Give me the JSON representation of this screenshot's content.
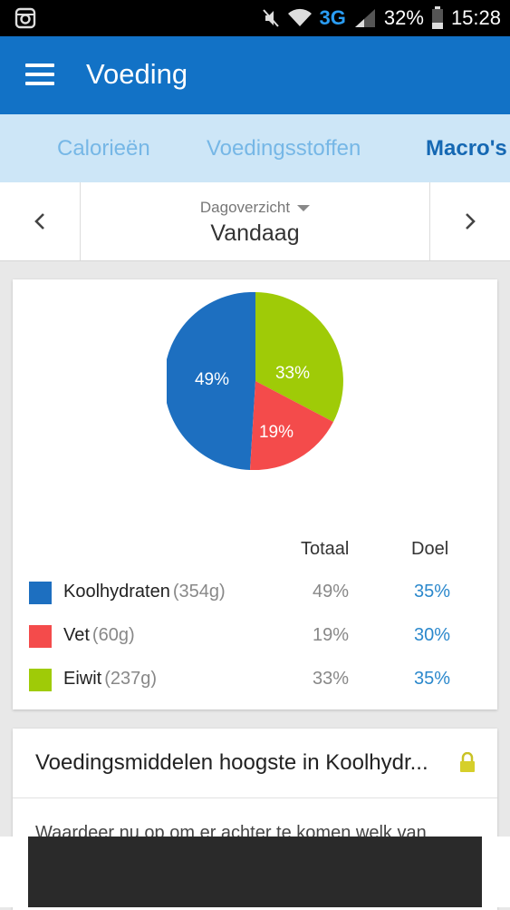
{
  "status_bar": {
    "battery": "32%",
    "time": "15:28",
    "network": "3G",
    "icons": [
      "instagram-icon",
      "mute-icon",
      "wifi-icon",
      "signal-icon",
      "battery-icon"
    ]
  },
  "app_bar": {
    "title": "Voeding",
    "color": "#1272c6"
  },
  "tabs": [
    {
      "label": "Calorieën",
      "active": false
    },
    {
      "label": "Voedingsstoffen",
      "active": false
    },
    {
      "label": "Macro's",
      "active": true
    }
  ],
  "date_nav": {
    "period_label": "Dagoverzicht",
    "period_value": "Vandaag"
  },
  "macros": {
    "pie_labels": [
      "49%",
      "19%",
      "33%"
    ],
    "headers": {
      "total": "Totaal",
      "goal": "Doel"
    },
    "rows": [
      {
        "name": "Koolhydraten",
        "grams": "(354g)",
        "total": "49%",
        "goal": "35%",
        "color": "#1d6fc0"
      },
      {
        "name": "Vet",
        "grams": "(60g)",
        "total": "19%",
        "goal": "30%",
        "color": "#f44b4b"
      },
      {
        "name": "Eiwit",
        "grams": "(237g)",
        "total": "33%",
        "goal": "35%",
        "color": "#9fcb07"
      }
    ]
  },
  "highest_card": {
    "title": "Voedingsmiddelen hoogste in Koolhydr...",
    "body": "Waardeer nu op om er achter te komen welk van"
  }
}
